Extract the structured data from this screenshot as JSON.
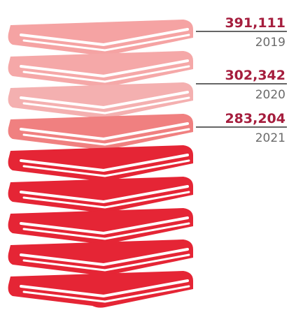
{
  "items": [
    {
      "value": "391,111",
      "year": "2019"
    },
    {
      "value": "302,342",
      "year": "2020"
    },
    {
      "value": "283,204",
      "year": "2021"
    }
  ]
}
